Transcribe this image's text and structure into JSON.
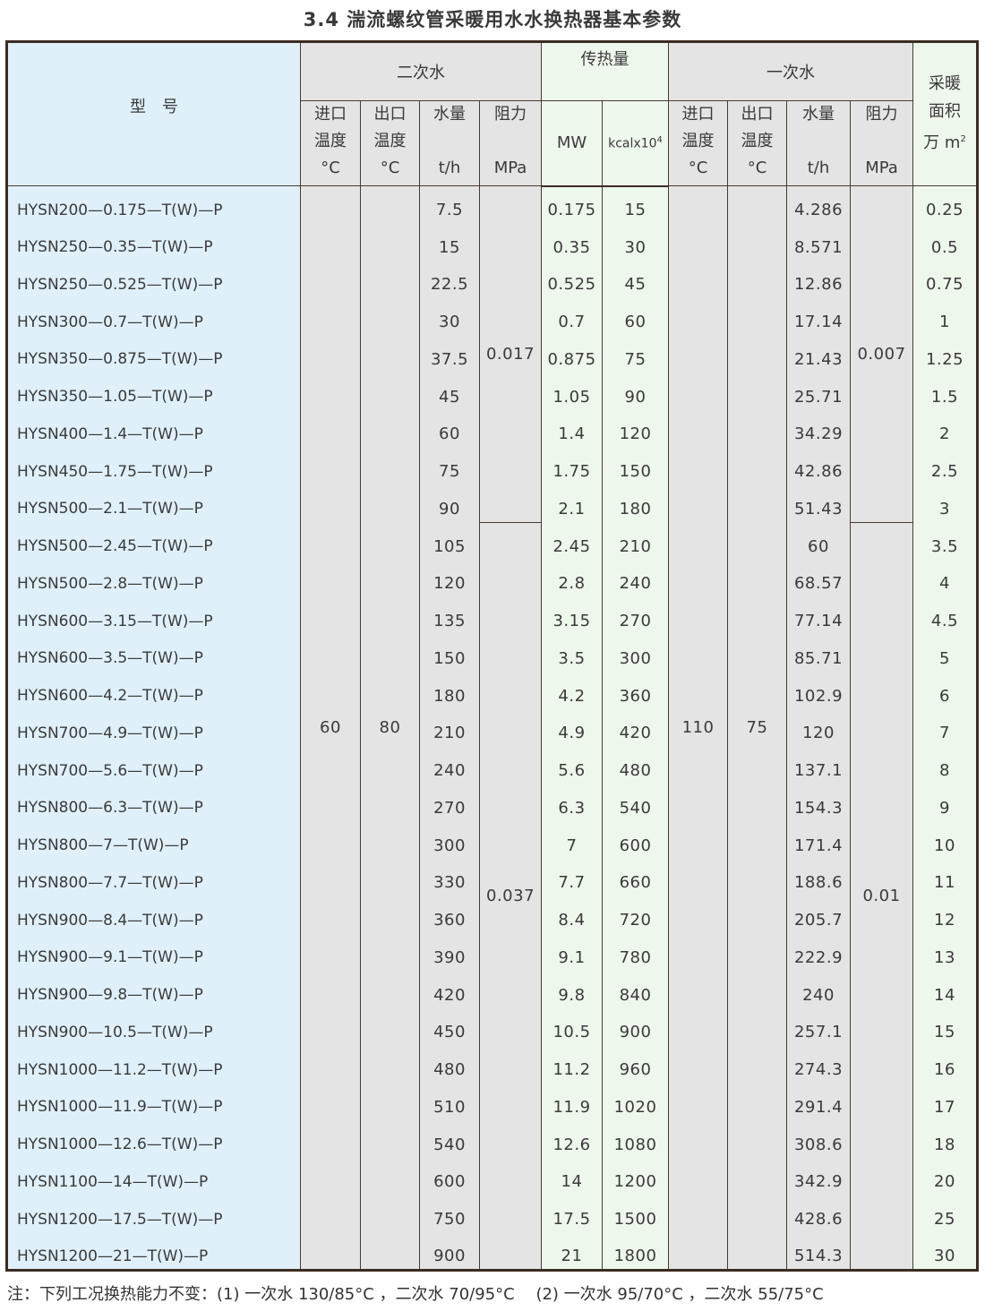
{
  "title": "3.4 湍流螺纹管采暖用水水换热器基本参数",
  "header": {
    "model": "型　号",
    "secondary": "二次水",
    "heat": "传热量",
    "primary": "一次水",
    "area_line1": "采暖",
    "area_line2": "面积",
    "area_line3": "万 m",
    "area_sup": "2",
    "inlet": "进口\n温度",
    "outlet": "出口\n温度",
    "flow": "水量",
    "resistance": "阻力",
    "unit_c": "°C",
    "unit_th": "t/h",
    "unit_mpa": "MPa",
    "unit_mw": "MW",
    "unit_kcal": "kcalx10",
    "unit_kcal_sup": "4"
  },
  "merged": {
    "sec_in": "60",
    "sec_out": "80",
    "sec_res_a": "0.017",
    "sec_res_b": "0.037",
    "pri_in": "110",
    "pri_out": "75",
    "pri_res_a": "0.007",
    "pri_res_b": "0.01"
  },
  "rows": [
    [
      "HYSN200—0.175—T(W)—P",
      "7.5",
      "0.175",
      "15",
      "4.286",
      "0.25"
    ],
    [
      "HYSN250—0.35—T(W)—P",
      "15",
      "0.35",
      "30",
      "8.571",
      "0.5"
    ],
    [
      "HYSN250—0.525—T(W)—P",
      "22.5",
      "0.525",
      "45",
      "12.86",
      "0.75"
    ],
    [
      "HYSN300—0.7—T(W)—P",
      "30",
      "0.7",
      "60",
      "17.14",
      "1"
    ],
    [
      "HYSN350—0.875—T(W)—P",
      "37.5",
      "0.875",
      "75",
      "21.43",
      "1.25"
    ],
    [
      "HYSN350—1.05—T(W)—P",
      "45",
      "1.05",
      "90",
      "25.71",
      "1.5"
    ],
    [
      "HYSN400—1.4—T(W)—P",
      "60",
      "1.4",
      "120",
      "34.29",
      "2"
    ],
    [
      "HYSN450—1.75—T(W)—P",
      "75",
      "1.75",
      "150",
      "42.86",
      "2.5"
    ],
    [
      "HYSN500—2.1—T(W)—P",
      "90",
      "2.1",
      "180",
      "51.43",
      "3"
    ],
    [
      "HYSN500—2.45—T(W)—P",
      "105",
      "2.45",
      "210",
      "60",
      "3.5"
    ],
    [
      "HYSN500—2.8—T(W)—P",
      "120",
      "2.8",
      "240",
      "68.57",
      "4"
    ],
    [
      "HYSN600—3.15—T(W)—P",
      "135",
      "3.15",
      "270",
      "77.14",
      "4.5"
    ],
    [
      "HYSN600—3.5—T(W)—P",
      "150",
      "3.5",
      "300",
      "85.71",
      "5"
    ],
    [
      "HYSN600—4.2—T(W)—P",
      "180",
      "4.2",
      "360",
      "102.9",
      "6"
    ],
    [
      "HYSN700—4.9—T(W)—P",
      "210",
      "4.9",
      "420",
      "120",
      "7"
    ],
    [
      "HYSN700—5.6—T(W)—P",
      "240",
      "5.6",
      "480",
      "137.1",
      "8"
    ],
    [
      "HYSN800—6.3—T(W)—P",
      "270",
      "6.3",
      "540",
      "154.3",
      "9"
    ],
    [
      "HYSN800—7—T(W)—P",
      "300",
      "7",
      "600",
      "171.4",
      "10"
    ],
    [
      "HYSN800—7.7—T(W)—P",
      "330",
      "7.7",
      "660",
      "188.6",
      "11"
    ],
    [
      "HYSN900—8.4—T(W)—P",
      "360",
      "8.4",
      "720",
      "205.7",
      "12"
    ],
    [
      "HYSN900—9.1—T(W)—P",
      "390",
      "9.1",
      "780",
      "222.9",
      "13"
    ],
    [
      "HYSN900—9.8—T(W)—P",
      "420",
      "9.8",
      "840",
      "240",
      "14"
    ],
    [
      "HYSN900—10.5—T(W)—P",
      "450",
      "10.5",
      "900",
      "257.1",
      "15"
    ],
    [
      "HYSN1000—11.2—T(W)—P",
      "480",
      "11.2",
      "960",
      "274.3",
      "16"
    ],
    [
      "HYSN1000—11.9—T(W)—P",
      "510",
      "11.9",
      "1020",
      "291.4",
      "17"
    ],
    [
      "HYSN1000—12.6—T(W)—P",
      "540",
      "12.6",
      "1080",
      "308.6",
      "18"
    ],
    [
      "HYSN1100—14—T(W)—P",
      "600",
      "14",
      "1200",
      "342.9",
      "20"
    ],
    [
      "HYSN1200—17.5—T(W)—P",
      "750",
      "17.5",
      "1500",
      "428.6",
      "25"
    ],
    [
      "HYSN1200—21—T(W)—P",
      "900",
      "21",
      "1800",
      "514.3",
      "30"
    ]
  ],
  "note": "注：下列工况换热能力不变：(1) 一次水 130/85°C ，二次水 70/95°C　 (2) 一次水 95/70°C ，二次水 55/75°C",
  "colors": {
    "model_bg": "#dff0fa",
    "water_bg": "#e4e4e4",
    "heat_bg": "#eef7ec",
    "border": "#3b2c22"
  }
}
